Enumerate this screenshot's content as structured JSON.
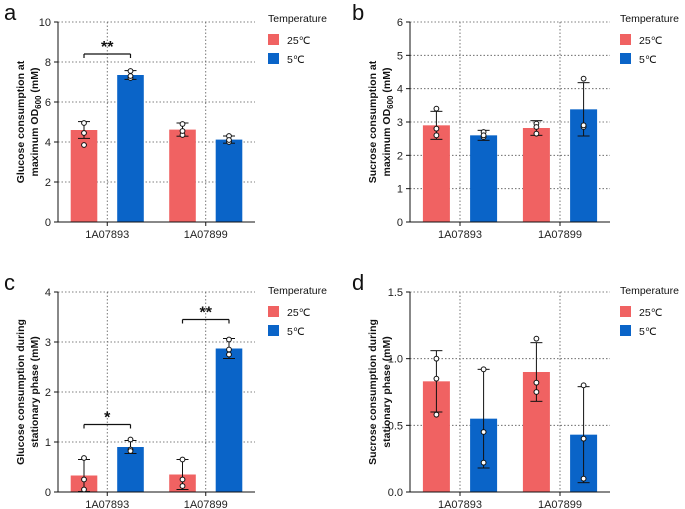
{
  "colors": {
    "warm": "#f06262",
    "cold": "#0a64c8"
  },
  "chart_data": [
    {
      "type": "bar",
      "panel": "a",
      "ylabel": "Glucose consumption at maximum OD",
      "ylabel_sub": "600",
      "ylabel_unit": "(mM)",
      "categories": [
        "1A07893",
        "1A07899"
      ],
      "ylim": [
        0,
        10
      ],
      "yticks": [
        0,
        2,
        4,
        6,
        8,
        10
      ],
      "grid": true,
      "legend_title": "Temperature",
      "series": [
        {
          "name": "25℃",
          "values": [
            4.6,
            4.62
          ],
          "errors": [
            0.42,
            0.33
          ],
          "points": [
            [
              4.95,
              4.45,
              3.85
            ],
            [
              4.9,
              4.35,
              4.55
            ]
          ]
        },
        {
          "name": "5℃",
          "values": [
            7.35,
            4.12
          ],
          "errors": [
            0.22,
            0.18
          ],
          "points": [
            [
              7.55,
              7.2,
              7.3
            ],
            [
              4.3,
              4.0,
              4.1
            ]
          ]
        }
      ],
      "significance": [
        {
          "category": "1A07893",
          "label": "**",
          "y": 8.4
        }
      ]
    },
    {
      "type": "bar",
      "panel": "b",
      "ylabel": "Sucrose consumption at maximum OD",
      "ylabel_sub": "600",
      "ylabel_unit": "(mM)",
      "categories": [
        "1A07893",
        "1A07899"
      ],
      "ylim": [
        0,
        6
      ],
      "yticks": [
        0,
        1,
        2,
        3,
        4,
        5,
        6
      ],
      "grid": true,
      "legend_title": "Temperature",
      "series": [
        {
          "name": "25℃",
          "values": [
            2.9,
            2.82
          ],
          "errors": [
            0.42,
            0.22
          ],
          "points": [
            [
              3.4,
              2.8,
              2.6
            ],
            [
              2.95,
              2.65,
              2.85
            ]
          ]
        },
        {
          "name": "5℃",
          "values": [
            2.6,
            3.38
          ],
          "errors": [
            0.15,
            0.8
          ],
          "points": [
            [
              2.7,
              2.55,
              2.6
            ],
            [
              4.3,
              2.85,
              2.9
            ]
          ]
        }
      ],
      "significance": []
    },
    {
      "type": "bar",
      "panel": "c",
      "ylabel": "Glucose consumption during",
      "ylabel2": "stationary phase (mM)",
      "categories": [
        "1A07893",
        "1A07899"
      ],
      "ylim": [
        0,
        4
      ],
      "yticks": [
        0,
        1,
        2,
        3,
        4
      ],
      "grid": true,
      "legend_title": "Temperature",
      "series": [
        {
          "name": "25℃",
          "values": [
            0.33,
            0.35
          ],
          "errors": [
            0.32,
            0.3
          ],
          "points": [
            [
              0.68,
              0.25,
              0.05
            ],
            [
              0.65,
              0.25,
              0.12
            ]
          ]
        },
        {
          "name": "5℃",
          "values": [
            0.9,
            2.87
          ],
          "errors": [
            0.13,
            0.2
          ],
          "points": [
            [
              1.05,
              0.85,
              0.82
            ],
            [
              3.05,
              2.75,
              2.85
            ]
          ]
        }
      ],
      "significance": [
        {
          "category": "1A07893",
          "label": "*",
          "y": 1.35
        },
        {
          "category": "1A07899",
          "label": "**",
          "y": 3.45
        }
      ]
    },
    {
      "type": "bar",
      "panel": "d",
      "ylabel": "Sucrose consumption during",
      "ylabel2": "stationary phase (mM)",
      "categories": [
        "1A07893",
        "1A07899"
      ],
      "ylim": [
        0,
        1.5
      ],
      "yticks": [
        0.0,
        0.5,
        1.0,
        1.5
      ],
      "ytick_labels": [
        "0.0",
        "0.5",
        "1.0",
        "1.5"
      ],
      "grid": true,
      "legend_title": "Temperature",
      "series": [
        {
          "name": "25℃",
          "values": [
            0.83,
            0.9
          ],
          "errors": [
            0.23,
            0.22
          ],
          "points": [
            [
              1.0,
              0.85,
              0.58
            ],
            [
              1.15,
              0.82,
              0.75
            ]
          ]
        },
        {
          "name": "5℃",
          "values": [
            0.55,
            0.43
          ],
          "errors": [
            0.37,
            0.36
          ],
          "points": [
            [
              0.92,
              0.45,
              0.22
            ],
            [
              0.8,
              0.4,
              0.1
            ]
          ]
        }
      ],
      "significance": []
    }
  ]
}
